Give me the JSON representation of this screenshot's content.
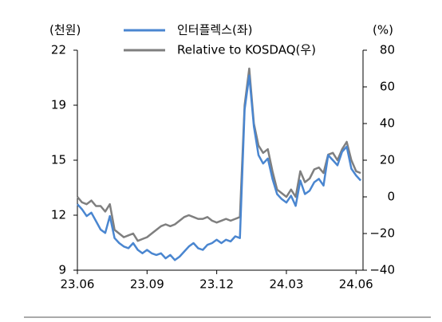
{
  "chart_data": {
    "type": "line",
    "y_label": "(천원)",
    "y2_label": "(%)",
    "x": [
      0,
      0.2,
      0.4,
      0.6,
      0.8,
      1.0,
      1.2,
      1.4,
      1.6,
      1.8,
      2.0,
      2.2,
      2.4,
      2.6,
      2.8,
      3.0,
      3.2,
      3.4,
      3.6,
      3.8,
      4.0,
      4.2,
      4.4,
      4.6,
      4.8,
      5.0,
      5.2,
      5.4,
      5.6,
      5.8,
      6.0,
      6.2,
      6.4,
      6.6,
      6.8,
      7.0,
      7.2,
      7.4,
      7.6,
      7.8,
      8.0,
      8.2,
      8.4,
      8.6,
      8.8,
      9.0,
      9.2,
      9.4,
      9.6,
      9.8,
      10.0,
      10.2,
      10.4,
      10.6,
      10.8,
      11.0,
      11.2,
      11.4,
      11.6,
      11.8,
      12.0,
      12.2
    ],
    "xlim": [
      0,
      12.3
    ],
    "xticks": [
      {
        "value": 0,
        "label": "23.06"
      },
      {
        "value": 3,
        "label": "23.09"
      },
      {
        "value": 6,
        "label": "23.12"
      },
      {
        "value": 9,
        "label": "24.03"
      },
      {
        "value": 12,
        "label": "24.06"
      }
    ],
    "ylim": [
      9,
      22
    ],
    "yticks": [
      9,
      {
        "value": 12.25,
        "label": "12"
      },
      {
        "value": 15.5,
        "label": "15"
      },
      {
        "value": 18.75,
        "label": "19"
      },
      22
    ],
    "y2lim": [
      -40,
      80
    ],
    "y2ticks": [
      -40,
      -20,
      0,
      20,
      40,
      60,
      80
    ],
    "y2tick_labels": [
      "−40",
      "−20",
      "0",
      "20",
      "40",
      "60",
      "80"
    ],
    "series": [
      {
        "name": "인터플렉스(좌)",
        "color": "#4a86d0",
        "axis": "y",
        "values": [
          12.9,
          12.6,
          12.2,
          12.4,
          11.9,
          11.4,
          11.2,
          12.2,
          10.9,
          10.6,
          10.4,
          10.3,
          10.6,
          10.2,
          10.0,
          10.2,
          10.0,
          9.9,
          10.0,
          9.7,
          9.9,
          9.6,
          9.8,
          10.1,
          10.4,
          10.6,
          10.3,
          10.2,
          10.5,
          10.6,
          10.8,
          10.6,
          10.8,
          10.7,
          11.0,
          10.9,
          18.5,
          20.5,
          17.5,
          15.8,
          15.3,
          15.6,
          14.4,
          13.5,
          13.2,
          13.0,
          13.4,
          12.8,
          14.3,
          13.5,
          13.7,
          14.2,
          14.4,
          14.0,
          15.8,
          15.5,
          15.2,
          16.0,
          16.3,
          15.0,
          14.6,
          14.3
        ]
      },
      {
        "name": "Relative to KOSDAQ(우)",
        "color": "#7f7f7f",
        "axis": "y2",
        "values": [
          0,
          -3,
          -4,
          -2,
          -5,
          -5,
          -8,
          -4,
          -18,
          -20,
          -22,
          -21,
          -20,
          -24,
          -23,
          -22,
          -20,
          -18,
          -16,
          -15,
          -16,
          -15,
          -13,
          -11,
          -10,
          -11,
          -12,
          -12,
          -11,
          -13,
          -14,
          -13,
          -12,
          -13,
          -12,
          -11,
          50,
          70,
          40,
          28,
          24,
          26,
          14,
          4,
          2,
          0,
          4,
          0,
          14,
          8,
          10,
          15,
          16,
          13,
          23,
          24,
          20,
          26,
          30,
          20,
          14,
          13
        ]
      }
    ]
  }
}
